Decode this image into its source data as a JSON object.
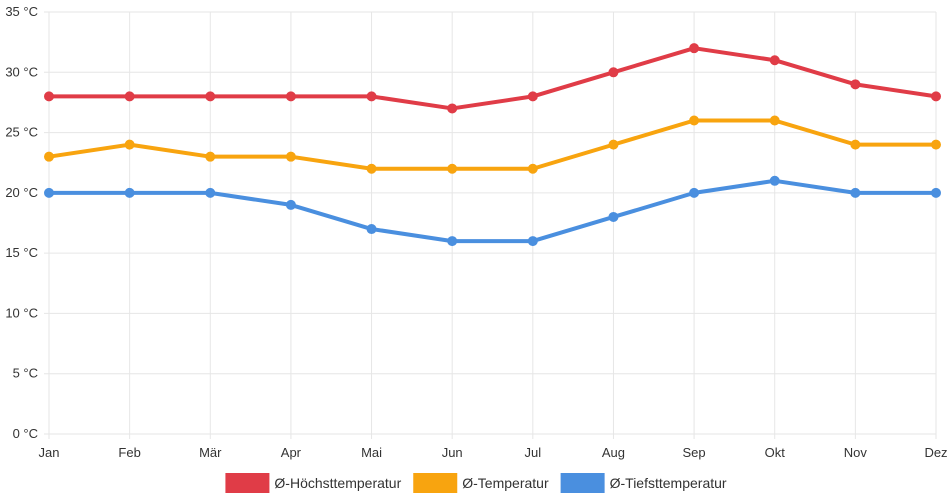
{
  "chart_data": {
    "type": "line",
    "title": "",
    "xlabel": "",
    "ylabel": "",
    "categories": [
      "Jan",
      "Feb",
      "Mär",
      "Apr",
      "Mai",
      "Jun",
      "Jul",
      "Aug",
      "Sep",
      "Okt",
      "Nov",
      "Dez"
    ],
    "y_unit": "°C",
    "ylim": [
      0,
      35
    ],
    "y_ticks": [
      0,
      5,
      10,
      15,
      20,
      25,
      30,
      35
    ],
    "y_tick_labels": [
      "0 °C",
      "5 °C",
      "10 °C",
      "15 °C",
      "20 °C",
      "25 °C",
      "30 °C",
      "35 °C"
    ],
    "grid": true,
    "legend_position": "bottom",
    "series": [
      {
        "name": "Ø-Höchsttemperatur",
        "color": "#e03c47",
        "values": [
          28,
          28,
          28,
          28,
          28,
          27,
          28,
          30,
          32,
          31,
          29,
          28
        ]
      },
      {
        "name": "Ø-Temperatur",
        "color": "#f8a40f",
        "values": [
          23,
          24,
          23,
          23,
          22,
          22,
          22,
          24,
          26,
          26,
          24,
          24
        ]
      },
      {
        "name": "Ø-Tiefsttemperatur",
        "color": "#4a8fdf",
        "values": [
          20,
          20,
          20,
          19,
          17,
          16,
          16,
          18,
          20,
          21,
          20,
          20
        ]
      }
    ]
  }
}
